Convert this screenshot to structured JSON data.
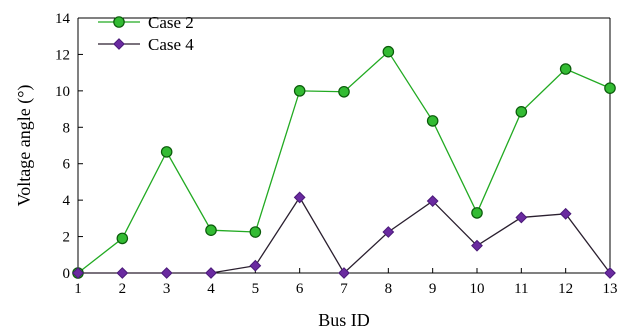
{
  "chart_data": {
    "type": "line",
    "xlabel": "Bus ID",
    "ylabel": "Voltage angle (°)",
    "x": [
      1,
      2,
      3,
      4,
      5,
      6,
      7,
      8,
      9,
      10,
      11,
      12,
      13
    ],
    "xlim": [
      1,
      13
    ],
    "ylim": [
      0,
      14
    ],
    "yticks": [
      0,
      2,
      4,
      6,
      8,
      10,
      12,
      14
    ],
    "grid": false,
    "legend_position": "top-left",
    "series": [
      {
        "name": "Case 2",
        "marker": "circle",
        "line_color": "#22aa22",
        "marker_fill": "#33bb33",
        "marker_edge": "#0a5a0a",
        "values": [
          0.0,
          1.9,
          6.65,
          2.35,
          2.25,
          10.0,
          9.95,
          12.15,
          8.35,
          3.3,
          8.85,
          11.2,
          10.15
        ]
      },
      {
        "name": "Case 4",
        "marker": "diamond",
        "line_color": "#2a1f2f",
        "marker_fill": "#6a2aa0",
        "marker_edge": "#4a1a78",
        "values": [
          0.0,
          0.0,
          0.0,
          0.0,
          0.4,
          4.15,
          0.0,
          2.25,
          3.95,
          1.5,
          3.05,
          3.25,
          0.0
        ]
      }
    ]
  }
}
